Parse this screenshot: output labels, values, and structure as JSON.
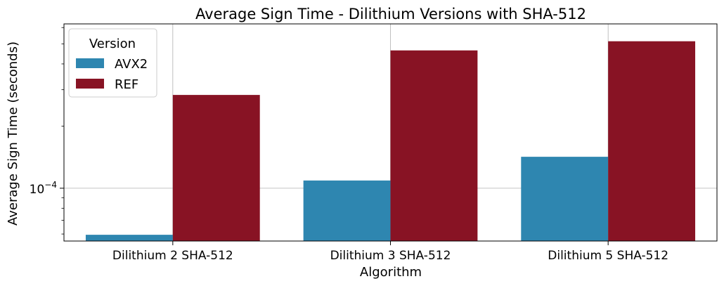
{
  "chart_data": {
    "type": "bar",
    "title": "Average Sign Time - Dilithium Versions with SHA-512",
    "xlabel": "Algorithm",
    "ylabel": "Average Sign Time (seconds)",
    "yscale": "log",
    "ylim": [
      5.55e-05,
      0.000625
    ],
    "y_major_ticks": [
      {
        "value": 0.0001,
        "base": "10",
        "exp": "−4"
      }
    ],
    "y_minor_ticks": [
      6e-05,
      7e-05,
      8e-05,
      9e-05,
      0.0002,
      0.0003,
      0.0004,
      0.0005,
      0.0006
    ],
    "categories": [
      "Dilithium 2 SHA-512",
      "Dilithium 3 SHA-512",
      "Dilithium 5 SHA-512"
    ],
    "series": [
      {
        "name": "AVX2",
        "color": "#2e86b0",
        "values": [
          5.95e-05,
          0.000109,
          0.000142
        ]
      },
      {
        "name": "REF",
        "color": "#881324",
        "values": [
          0.000283,
          0.000465,
          0.000515
        ]
      }
    ],
    "grid": true,
    "legend": {
      "title": "Version",
      "placement": "top-left"
    }
  }
}
